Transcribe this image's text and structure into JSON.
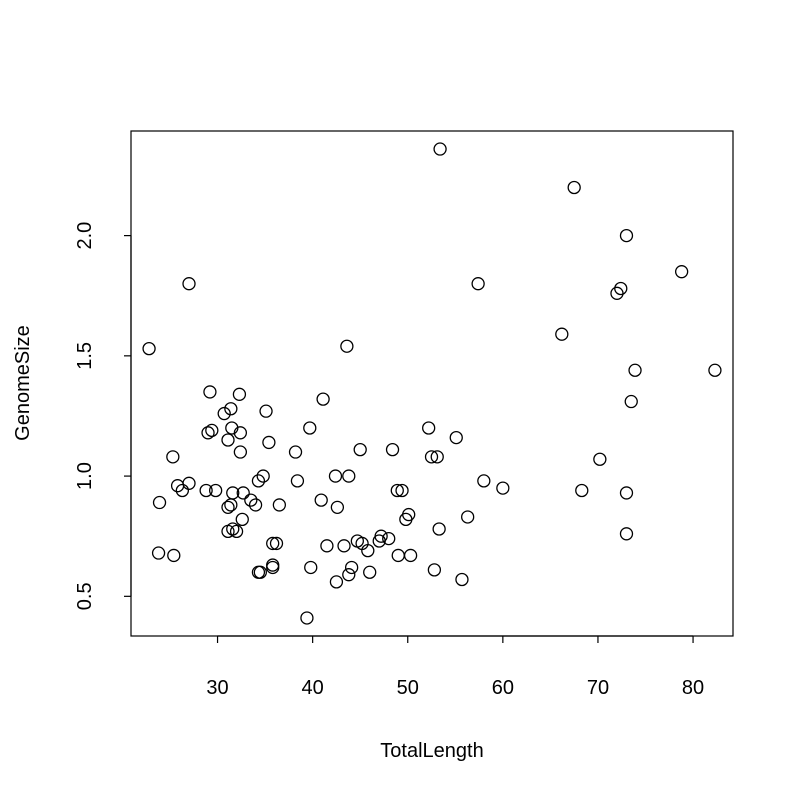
{
  "chart_data": {
    "type": "scatter",
    "title": "",
    "xlabel": "TotalLength",
    "ylabel": "GenomeSize",
    "xlim": [
      20.9,
      84.2
    ],
    "ylim": [
      0.335,
      2.435
    ],
    "xticks": [
      30,
      40,
      50,
      60,
      70,
      80
    ],
    "yticks": [
      0.5,
      1.0,
      1.5,
      2.0
    ],
    "xtick_labels": [
      "30",
      "40",
      "50",
      "60",
      "70",
      "80"
    ],
    "ytick_labels": [
      "0.5",
      "1.0",
      "1.5",
      "2.0"
    ],
    "grid": false,
    "points": [
      {
        "x": 22.8,
        "y": 1.53
      },
      {
        "x": 23.9,
        "y": 0.89
      },
      {
        "x": 23.8,
        "y": 0.68
      },
      {
        "x": 25.3,
        "y": 1.08
      },
      {
        "x": 25.4,
        "y": 0.67
      },
      {
        "x": 25.8,
        "y": 0.96
      },
      {
        "x": 26.3,
        "y": 0.94
      },
      {
        "x": 27.0,
        "y": 0.97
      },
      {
        "x": 27.0,
        "y": 1.8
      },
      {
        "x": 28.8,
        "y": 0.94
      },
      {
        "x": 29.0,
        "y": 1.18
      },
      {
        "x": 29.2,
        "y": 1.35
      },
      {
        "x": 29.4,
        "y": 1.19
      },
      {
        "x": 29.8,
        "y": 0.94
      },
      {
        "x": 30.7,
        "y": 1.26
      },
      {
        "x": 31.1,
        "y": 1.15
      },
      {
        "x": 31.1,
        "y": 0.87
      },
      {
        "x": 31.1,
        "y": 0.77
      },
      {
        "x": 31.4,
        "y": 0.88
      },
      {
        "x": 31.4,
        "y": 1.28
      },
      {
        "x": 31.5,
        "y": 1.2
      },
      {
        "x": 31.6,
        "y": 0.93
      },
      {
        "x": 31.6,
        "y": 0.78
      },
      {
        "x": 32.0,
        "y": 0.77
      },
      {
        "x": 32.3,
        "y": 1.34
      },
      {
        "x": 32.4,
        "y": 1.18
      },
      {
        "x": 32.4,
        "y": 1.1
      },
      {
        "x": 32.6,
        "y": 0.82
      },
      {
        "x": 32.7,
        "y": 0.93
      },
      {
        "x": 33.5,
        "y": 0.9
      },
      {
        "x": 34.0,
        "y": 0.88
      },
      {
        "x": 34.3,
        "y": 0.98
      },
      {
        "x": 34.3,
        "y": 0.6
      },
      {
        "x": 34.5,
        "y": 0.6
      },
      {
        "x": 34.8,
        "y": 1.0
      },
      {
        "x": 35.1,
        "y": 1.27
      },
      {
        "x": 35.4,
        "y": 1.14
      },
      {
        "x": 35.8,
        "y": 0.72
      },
      {
        "x": 35.8,
        "y": 0.63
      },
      {
        "x": 35.8,
        "y": 0.62
      },
      {
        "x": 36.2,
        "y": 0.72
      },
      {
        "x": 36.5,
        "y": 0.88
      },
      {
        "x": 38.2,
        "y": 1.1
      },
      {
        "x": 38.4,
        "y": 0.98
      },
      {
        "x": 39.4,
        "y": 0.41
      },
      {
        "x": 39.7,
        "y": 1.2
      },
      {
        "x": 39.8,
        "y": 0.62
      },
      {
        "x": 40.9,
        "y": 0.9
      },
      {
        "x": 41.1,
        "y": 1.32
      },
      {
        "x": 41.5,
        "y": 0.71
      },
      {
        "x": 42.4,
        "y": 1.0
      },
      {
        "x": 42.5,
        "y": 0.56
      },
      {
        "x": 42.6,
        "y": 0.87
      },
      {
        "x": 43.3,
        "y": 0.71
      },
      {
        "x": 43.6,
        "y": 1.54
      },
      {
        "x": 43.8,
        "y": 1.0
      },
      {
        "x": 43.8,
        "y": 0.59
      },
      {
        "x": 44.1,
        "y": 0.62
      },
      {
        "x": 44.7,
        "y": 0.73
      },
      {
        "x": 45.0,
        "y": 1.11
      },
      {
        "x": 45.2,
        "y": 0.72
      },
      {
        "x": 45.8,
        "y": 0.69
      },
      {
        "x": 46.0,
        "y": 0.6
      },
      {
        "x": 47.0,
        "y": 0.73
      },
      {
        "x": 47.2,
        "y": 0.75
      },
      {
        "x": 48.0,
        "y": 0.74
      },
      {
        "x": 48.4,
        "y": 1.11
      },
      {
        "x": 48.9,
        "y": 0.94
      },
      {
        "x": 49.0,
        "y": 0.67
      },
      {
        "x": 49.4,
        "y": 0.94
      },
      {
        "x": 49.8,
        "y": 0.82
      },
      {
        "x": 50.1,
        "y": 0.84
      },
      {
        "x": 50.3,
        "y": 0.67
      },
      {
        "x": 52.2,
        "y": 1.2
      },
      {
        "x": 52.5,
        "y": 1.08
      },
      {
        "x": 52.8,
        "y": 0.61
      },
      {
        "x": 53.1,
        "y": 1.08
      },
      {
        "x": 53.3,
        "y": 0.78
      },
      {
        "x": 53.4,
        "y": 2.36
      },
      {
        "x": 55.1,
        "y": 1.16
      },
      {
        "x": 55.7,
        "y": 0.57
      },
      {
        "x": 56.3,
        "y": 0.83
      },
      {
        "x": 57.4,
        "y": 1.8
      },
      {
        "x": 58.0,
        "y": 0.98
      },
      {
        "x": 60.0,
        "y": 0.95
      },
      {
        "x": 66.2,
        "y": 1.59
      },
      {
        "x": 67.5,
        "y": 2.2
      },
      {
        "x": 68.3,
        "y": 0.94
      },
      {
        "x": 70.2,
        "y": 1.07
      },
      {
        "x": 72.0,
        "y": 1.76
      },
      {
        "x": 72.4,
        "y": 1.78
      },
      {
        "x": 73.0,
        "y": 2.0
      },
      {
        "x": 73.0,
        "y": 0.93
      },
      {
        "x": 73.0,
        "y": 0.76
      },
      {
        "x": 73.5,
        "y": 1.31
      },
      {
        "x": 73.9,
        "y": 1.44
      },
      {
        "x": 78.8,
        "y": 1.85
      },
      {
        "x": 82.3,
        "y": 1.44
      }
    ]
  }
}
